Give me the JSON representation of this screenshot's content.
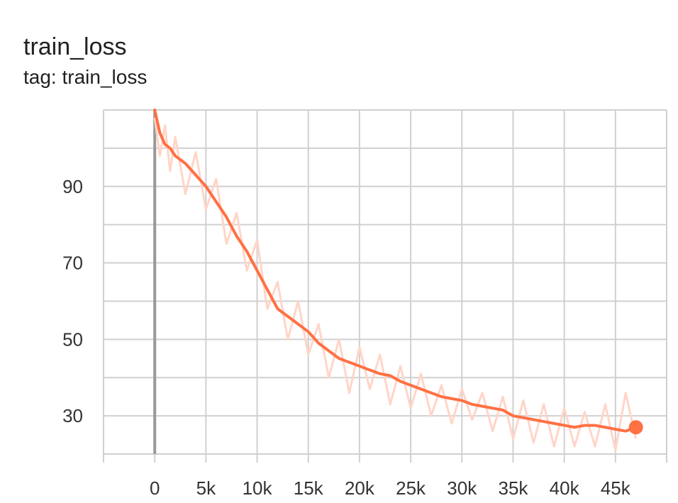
{
  "header": {
    "title": "train_loss",
    "subtitle": "tag: train_loss"
  },
  "colors": {
    "series": "#ff7043",
    "series_raw": "#ffd5c8",
    "grid": "#d0d0d0",
    "zero_axis": "#999999"
  },
  "chart_data": {
    "type": "line",
    "title": "train_loss",
    "subtitle": "tag: train_loss",
    "xlabel": "",
    "ylabel": "",
    "xlim": [
      -5000,
      50000
    ],
    "ylim": [
      20,
      110
    ],
    "x_ticks": [
      0,
      5000,
      10000,
      15000,
      20000,
      25000,
      30000,
      35000,
      40000,
      45000
    ],
    "x_tick_labels": [
      "0",
      "5k",
      "10k",
      "15k",
      "20k",
      "25k",
      "30k",
      "35k",
      "40k",
      "45k"
    ],
    "y_ticks": [
      30,
      50,
      70,
      90
    ],
    "y_tick_labels": [
      "30",
      "50",
      "70",
      "90"
    ],
    "grid": true,
    "legend": "none",
    "series": [
      {
        "role": "smoothed",
        "x": [
          0,
          500,
          1000,
          1500,
          2000,
          3000,
          4000,
          5000,
          6000,
          7000,
          8000,
          9000,
          10000,
          11000,
          12000,
          13000,
          14000,
          15000,
          16000,
          17000,
          18000,
          19000,
          20000,
          21000,
          22000,
          23000,
          24000,
          25000,
          26000,
          27000,
          28000,
          29000,
          30000,
          31000,
          32000,
          33000,
          34000,
          35000,
          36000,
          37000,
          38000,
          39000,
          40000,
          41000,
          42000,
          43000,
          44000,
          45000,
          46000,
          47000
        ],
        "y": [
          110,
          104,
          101,
          100,
          98,
          96,
          93,
          90,
          86,
          82,
          77,
          73,
          68,
          63,
          58,
          56,
          54,
          52,
          49,
          47,
          45,
          44,
          43,
          42,
          41,
          40.5,
          39,
          38,
          37,
          36,
          35,
          34.5,
          34,
          33,
          32.5,
          32,
          31.5,
          30,
          29.5,
          29,
          28.5,
          28,
          27.5,
          27,
          27.5,
          27.5,
          27,
          26.5,
          26,
          27
        ]
      },
      {
        "role": "raw",
        "x": [
          0,
          500,
          1000,
          1500,
          2000,
          3000,
          4000,
          5000,
          6000,
          7000,
          8000,
          9000,
          10000,
          11000,
          12000,
          13000,
          14000,
          15000,
          16000,
          17000,
          18000,
          19000,
          20000,
          21000,
          22000,
          23000,
          24000,
          25000,
          26000,
          27000,
          28000,
          29000,
          30000,
          31000,
          32000,
          33000,
          34000,
          35000,
          36000,
          37000,
          38000,
          39000,
          40000,
          41000,
          42000,
          43000,
          44000,
          45000,
          46000,
          47000
        ],
        "y": [
          108,
          98,
          106,
          94,
          103,
          88,
          99,
          84,
          92,
          75,
          83,
          68,
          76,
          58,
          65,
          50,
          60,
          46,
          54,
          40,
          50,
          36,
          48,
          37,
          46,
          33,
          43,
          32,
          41,
          30,
          38,
          28,
          37,
          29,
          36,
          26,
          35,
          24,
          34,
          23,
          33,
          22,
          32,
          22,
          31,
          22,
          33,
          21,
          36,
          24
        ]
      }
    ]
  }
}
